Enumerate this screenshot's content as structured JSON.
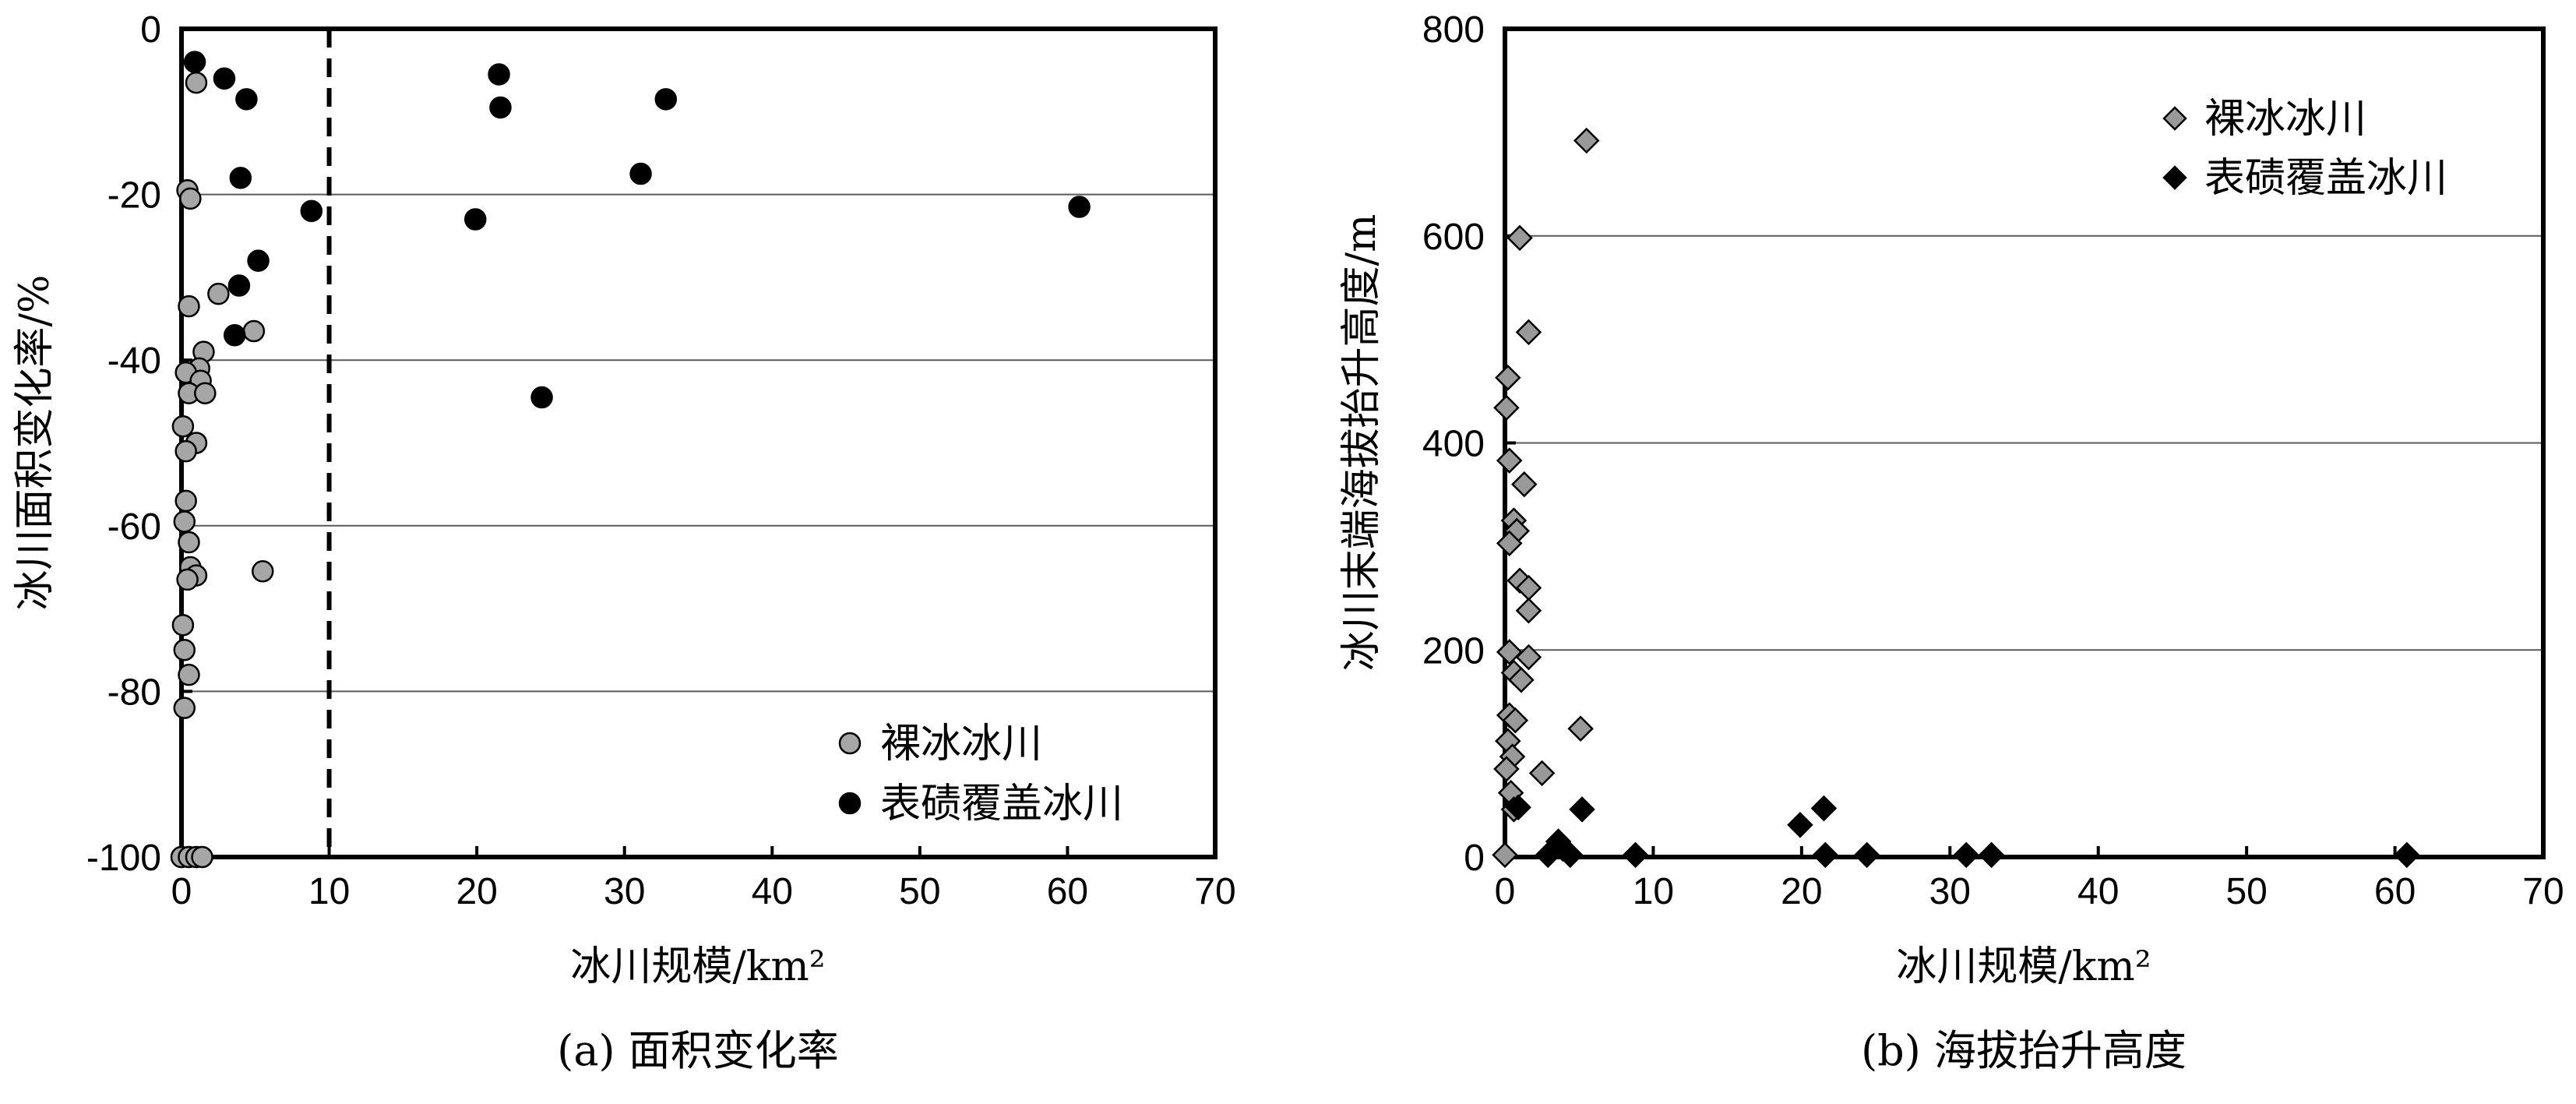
{
  "chart_data": [
    {
      "type": "scatter",
      "caption": "(a) 面积变化率",
      "xlabel": "冰川规模/km²",
      "ylabel": "冰川面积变化率/%",
      "xlim": [
        0,
        70
      ],
      "ylim": [
        -100,
        0
      ],
      "xticks": [
        0,
        10,
        20,
        30,
        40,
        50,
        60,
        70
      ],
      "yticks": [
        -100,
        -80,
        -60,
        -40,
        -20,
        0
      ],
      "grid": "horizontal",
      "reference_line": {
        "x": 10,
        "style": "dashed"
      },
      "legend_position": "bottom-right",
      "series": [
        {
          "name": "裸冰冰川",
          "color": "#a6a6a6",
          "marker": "circle",
          "points": [
            [
              1.0,
              -6.5
            ],
            [
              0.4,
              -19.5
            ],
            [
              0.6,
              -20.5
            ],
            [
              0.5,
              -33.5
            ],
            [
              2.5,
              -32
            ],
            [
              1.5,
              -39
            ],
            [
              1.2,
              -41
            ],
            [
              0.3,
              -41.5
            ],
            [
              1.3,
              -42.5
            ],
            [
              0.5,
              -44
            ],
            [
              1.6,
              -44
            ],
            [
              4.9,
              -36.5
            ],
            [
              0.1,
              -48
            ],
            [
              1.0,
              -50
            ],
            [
              0.3,
              -51
            ],
            [
              0.3,
              -57
            ],
            [
              0.2,
              -59.5
            ],
            [
              0.5,
              -62
            ],
            [
              0.6,
              -65
            ],
            [
              1.0,
              -66
            ],
            [
              0.4,
              -66.5
            ],
            [
              5.5,
              -65.5
            ],
            [
              0.1,
              -72
            ],
            [
              0.2,
              -75
            ],
            [
              0.5,
              -78
            ],
            [
              0.2,
              -82
            ],
            [
              0.0,
              -100
            ],
            [
              0.5,
              -100
            ],
            [
              1.0,
              -100
            ],
            [
              1.4,
              -100
            ]
          ]
        },
        {
          "name": "表碛覆盖冰川",
          "color": "#000000",
          "marker": "circle",
          "points": [
            [
              0.9,
              -4
            ],
            [
              2.9,
              -6
            ],
            [
              4.4,
              -8.5
            ],
            [
              4.0,
              -18
            ],
            [
              8.8,
              -22
            ],
            [
              5.2,
              -28
            ],
            [
              3.9,
              -31
            ],
            [
              3.6,
              -37
            ],
            [
              21.5,
              -5.5
            ],
            [
              21.6,
              -9.5
            ],
            [
              19.9,
              -23
            ],
            [
              32.8,
              -8.5
            ],
            [
              31.1,
              -17.5
            ],
            [
              24.4,
              -44.5
            ],
            [
              60.8,
              -21.5
            ]
          ]
        }
      ]
    },
    {
      "type": "scatter",
      "caption": "(b) 海拔抬升高度",
      "xlabel": "冰川规模/km²",
      "ylabel": "冰川末端海拔抬升高度/m",
      "xlim": [
        0,
        70
      ],
      "ylim": [
        0,
        800
      ],
      "xticks": [
        0,
        10,
        20,
        30,
        40,
        50,
        60,
        70
      ],
      "yticks": [
        0,
        200,
        400,
        600,
        800
      ],
      "grid": "horizontal",
      "legend_position": "top-right",
      "series": [
        {
          "name": "裸冰冰川",
          "color": "#999999",
          "marker": "diamond",
          "points": [
            [
              5.5,
              692
            ],
            [
              1.0,
              598
            ],
            [
              1.6,
              507
            ],
            [
              0.2,
              463
            ],
            [
              0.1,
              434
            ],
            [
              0.3,
              383
            ],
            [
              1.3,
              360
            ],
            [
              0.6,
              325
            ],
            [
              0.8,
              315
            ],
            [
              0.3,
              303
            ],
            [
              1.0,
              267
            ],
            [
              1.6,
              260
            ],
            [
              1.6,
              238
            ],
            [
              0.3,
              198
            ],
            [
              1.6,
              193
            ],
            [
              0.6,
              178
            ],
            [
              1.1,
              171
            ],
            [
              0.3,
              137
            ],
            [
              0.7,
              132
            ],
            [
              5.1,
              124
            ],
            [
              0.2,
              112
            ],
            [
              0.5,
              97
            ],
            [
              0.1,
              85
            ],
            [
              2.5,
              81
            ],
            [
              0.4,
              62
            ],
            [
              0.6,
              46
            ],
            [
              0.0,
              2
            ]
          ]
        },
        {
          "name": "表碛覆盖冰川",
          "color": "#000000",
          "marker": "diamond",
          "points": [
            [
              0.9,
              48
            ],
            [
              5.2,
              46
            ],
            [
              19.9,
              31
            ],
            [
              21.5,
              47
            ],
            [
              3.6,
              15
            ],
            [
              3.9,
              8
            ],
            [
              2.9,
              2
            ],
            [
              4.4,
              2
            ],
            [
              8.8,
              2
            ],
            [
              21.6,
              2
            ],
            [
              24.4,
              2
            ],
            [
              31.1,
              2
            ],
            [
              32.8,
              2
            ],
            [
              60.8,
              2
            ]
          ]
        }
      ]
    }
  ]
}
